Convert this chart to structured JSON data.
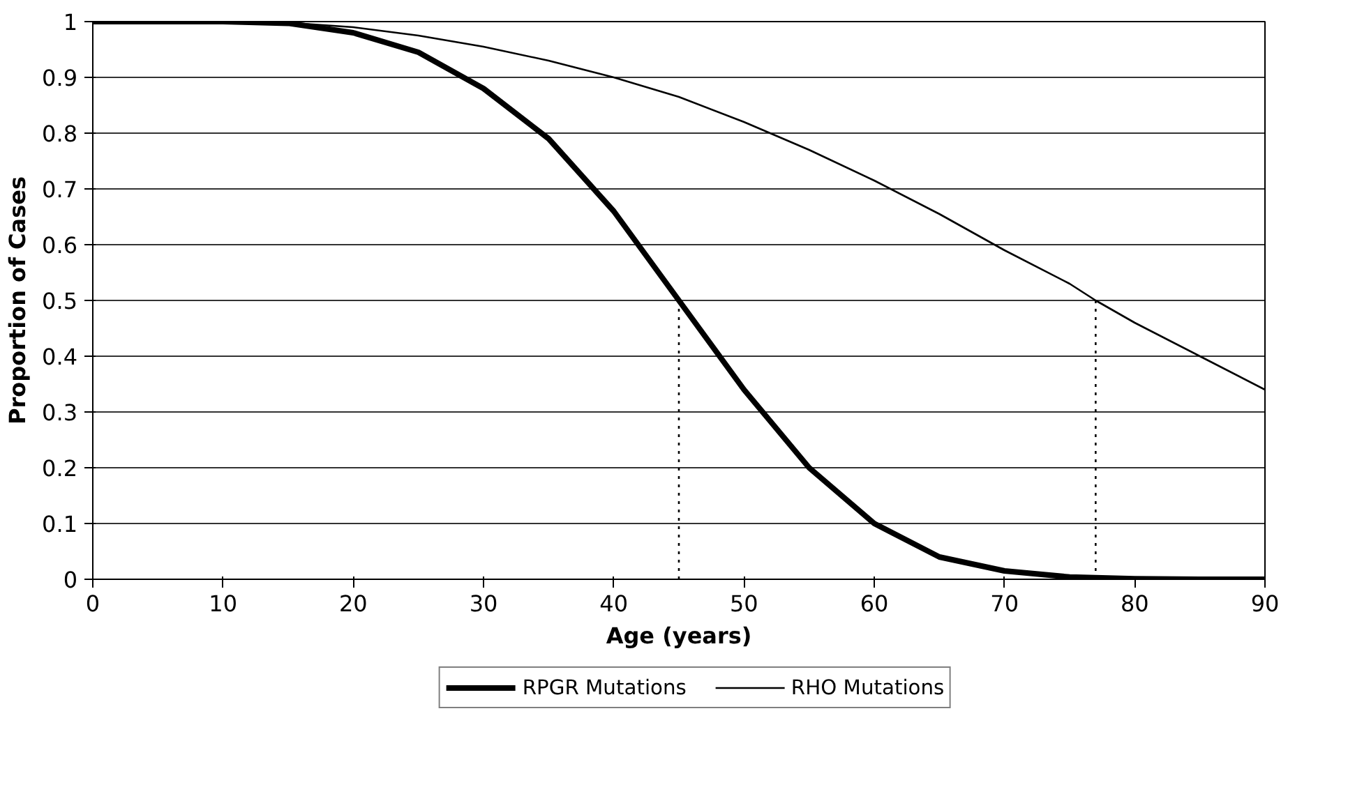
{
  "chart_data": {
    "type": "line",
    "xlabel": "Age (years)",
    "ylabel": "Proportion of Cases",
    "xlim": [
      0,
      90
    ],
    "xticks": [
      0,
      10,
      20,
      30,
      40,
      50,
      60,
      70,
      80,
      90
    ],
    "ylim": [
      0,
      1
    ],
    "yticks": [
      0,
      0.1,
      0.2,
      0.3,
      0.4,
      0.5,
      0.6,
      0.7,
      0.8,
      0.9,
      1
    ],
    "grid": "y",
    "legend": "bottom",
    "line_style": "solid",
    "marker": "none",
    "series": [
      {
        "name": "RPGR Mutations",
        "color": "#000000",
        "x": [
          0,
          10,
          15,
          20,
          25,
          30,
          35,
          40,
          45,
          50,
          55,
          60,
          65,
          70,
          75,
          80,
          85,
          90
        ],
        "values": [
          1,
          1,
          0.997,
          0.98,
          0.945,
          0.88,
          0.79,
          0.66,
          0.5,
          0.34,
          0.2,
          0.1,
          0.04,
          0.015,
          0.004,
          0.001,
          0,
          0
        ]
      },
      {
        "name": "RHO Mutations",
        "color": "#000000",
        "x": [
          0,
          10,
          15,
          20,
          25,
          30,
          35,
          40,
          45,
          50,
          55,
          60,
          65,
          70,
          75,
          77,
          80,
          85,
          90
        ],
        "values": [
          1,
          1,
          0.998,
          0.99,
          0.975,
          0.955,
          0.93,
          0.9,
          0.865,
          0.82,
          0.77,
          0.715,
          0.655,
          0.59,
          0.53,
          0.5,
          0.46,
          0.4,
          0.34
        ]
      },
      {
        "color": "#000000",
        "line_style": "dotted",
        "x": [
          45,
          45
        ],
        "values": [
          0,
          0.5
        ]
      },
      {
        "color": "#000000",
        "line_style": "dotted",
        "x": [
          77,
          77
        ],
        "values": [
          0,
          0.5
        ]
      }
    ]
  }
}
